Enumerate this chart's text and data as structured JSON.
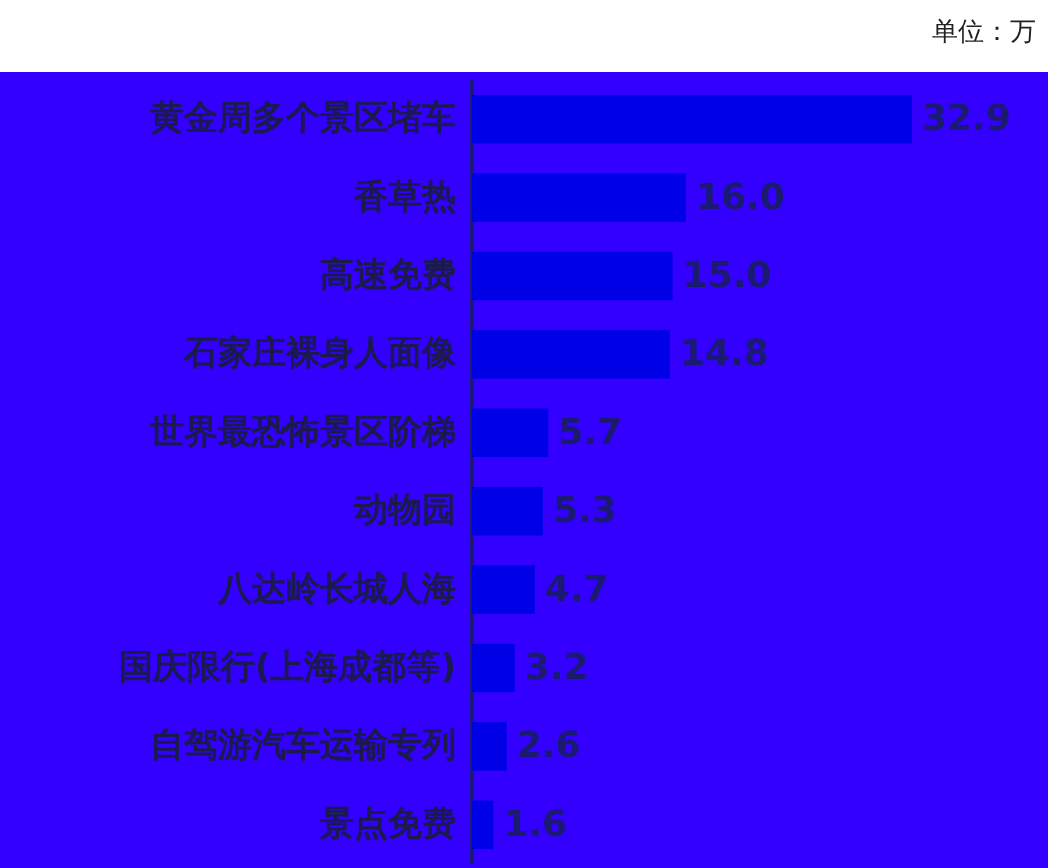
{
  "chart_data": {
    "type": "bar",
    "orientation": "horizontal",
    "categories": [
      "黄金周多个景区堵车",
      "香草热",
      "高速免费",
      "石家庄裸身人面像",
      "世界最恐怖景区阶梯",
      "动物园",
      "八达岭长城人海",
      "国庆限行(上海成都等)",
      "自驾游汽车运输专列",
      "景点免费"
    ],
    "values": [
      32.9,
      16.0,
      15.0,
      14.8,
      5.7,
      5.3,
      4.7,
      3.2,
      2.6,
      1.6
    ],
    "value_labels": [
      "32.9",
      "16.0",
      "15.0",
      "14.8",
      "5.7",
      "5.3",
      "4.7",
      "3.2",
      "2.6",
      "1.6"
    ],
    "color": "#0000e6",
    "annotations": [
      "单位：万"
    ]
  }
}
